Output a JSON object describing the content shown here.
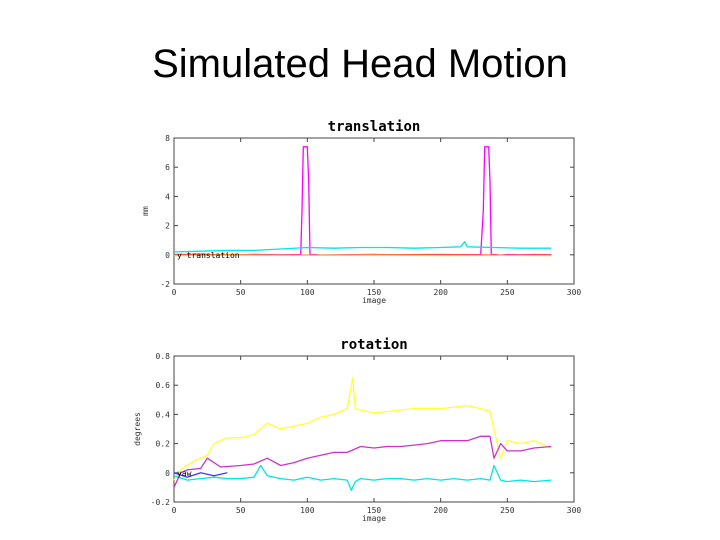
{
  "slide": {
    "title": "Simulated Head Motion"
  },
  "chart_data": [
    {
      "type": "line",
      "title": "translation",
      "xlabel": "image",
      "ylabel": "mm",
      "xlim": [
        0,
        300
      ],
      "ylim": [
        -2,
        8
      ],
      "xticks": [
        0,
        50,
        100,
        150,
        200,
        250,
        300
      ],
      "yticks": [
        -2,
        0,
        2,
        4,
        6,
        8
      ],
      "grid": false,
      "legend": {
        "position": "left-inside",
        "visible_entry": "y translation"
      },
      "series": [
        {
          "name": "",
          "color": "#ff00ff",
          "x": [
            0,
            20,
            40,
            60,
            80,
            95,
            96,
            97,
            99,
            100,
            101,
            102,
            103,
            105,
            110,
            130,
            150,
            170,
            190,
            210,
            230,
            232,
            233,
            234,
            236,
            237,
            238,
            239,
            240,
            245,
            250,
            260,
            270,
            283
          ],
          "y": [
            0.0,
            0.05,
            -0.02,
            0.03,
            0.0,
            0.02,
            3.0,
            7.4,
            7.4,
            7.4,
            5.0,
            0.02,
            0.0,
            0.02,
            -0.02,
            0.0,
            0.03,
            -0.02,
            0.02,
            0.0,
            0.02,
            3.0,
            7.4,
            7.4,
            7.4,
            5.0,
            0.02,
            0.0,
            0.02,
            -0.02,
            0.02,
            0.0,
            0.02,
            0.0
          ]
        },
        {
          "name": "",
          "color": "#00e5e5",
          "x": [
            0,
            20,
            40,
            60,
            80,
            100,
            120,
            140,
            160,
            180,
            200,
            215,
            218,
            220,
            240,
            260,
            283
          ],
          "y": [
            0.2,
            0.25,
            0.3,
            0.3,
            0.4,
            0.5,
            0.45,
            0.5,
            0.5,
            0.45,
            0.5,
            0.55,
            0.9,
            0.55,
            0.5,
            0.45,
            0.45
          ]
        },
        {
          "name": "",
          "color": "#ff3b3b",
          "x": [
            0,
            50,
            100,
            150,
            200,
            250,
            283
          ],
          "y": [
            0.02,
            0.0,
            -0.02,
            0.0,
            0.02,
            -0.02,
            0.0
          ]
        },
        {
          "name": "",
          "color": "#e6e600",
          "x": [
            0,
            50,
            100,
            150,
            200,
            250,
            283
          ],
          "y": [
            -0.05,
            -0.03,
            -0.04,
            -0.03,
            -0.05,
            -0.04,
            -0.05
          ]
        }
      ]
    },
    {
      "type": "line",
      "title": "rotation",
      "xlabel": "image",
      "ylabel": "degrees",
      "xlim": [
        0,
        300
      ],
      "ylim": [
        -0.2,
        0.8
      ],
      "xticks": [
        0,
        50,
        100,
        150,
        200,
        250,
        300
      ],
      "yticks": [
        -0.2,
        0,
        0.2,
        0.4,
        0.6,
        0.8
      ],
      "grid": false,
      "legend": {
        "position": "left-inside",
        "visible_entry": "yaw"
      },
      "series": [
        {
          "name": "",
          "color": "#ffff33",
          "x": [
            0,
            5,
            15,
            25,
            30,
            40,
            50,
            60,
            70,
            80,
            90,
            100,
            110,
            120,
            130,
            134,
            136,
            140,
            150,
            160,
            170,
            180,
            190,
            200,
            210,
            220,
            230,
            237,
            240,
            245,
            250,
            260,
            270,
            283
          ],
          "y": [
            -0.05,
            0.02,
            0.08,
            0.12,
            0.2,
            0.24,
            0.24,
            0.26,
            0.34,
            0.3,
            0.32,
            0.34,
            0.38,
            0.4,
            0.44,
            0.65,
            0.44,
            0.43,
            0.41,
            0.42,
            0.43,
            0.44,
            0.44,
            0.44,
            0.45,
            0.46,
            0.44,
            0.42,
            0.3,
            0.1,
            0.22,
            0.2,
            0.22,
            0.17
          ]
        },
        {
          "name": "",
          "color": "#cc33cc",
          "x": [
            0,
            5,
            10,
            20,
            25,
            35,
            50,
            60,
            70,
            80,
            90,
            100,
            110,
            120,
            130,
            140,
            150,
            160,
            170,
            180,
            190,
            200,
            210,
            220,
            230,
            237,
            240,
            245,
            250,
            260,
            270,
            283
          ],
          "y": [
            -0.1,
            0.0,
            0.02,
            0.03,
            0.1,
            0.04,
            0.05,
            0.06,
            0.1,
            0.05,
            0.07,
            0.1,
            0.12,
            0.14,
            0.14,
            0.18,
            0.17,
            0.18,
            0.18,
            0.19,
            0.2,
            0.22,
            0.22,
            0.22,
            0.25,
            0.25,
            0.1,
            0.2,
            0.15,
            0.15,
            0.17,
            0.18
          ]
        },
        {
          "name": "",
          "color": "#00e5e5",
          "x": [
            0,
            10,
            20,
            30,
            40,
            50,
            60,
            65,
            70,
            80,
            90,
            100,
            110,
            120,
            130,
            133,
            136,
            140,
            150,
            160,
            170,
            180,
            190,
            200,
            210,
            220,
            230,
            237,
            240,
            245,
            250,
            260,
            270,
            283
          ],
          "y": [
            -0.02,
            -0.05,
            -0.04,
            -0.03,
            -0.04,
            -0.04,
            -0.03,
            0.05,
            -0.02,
            -0.04,
            -0.05,
            -0.03,
            -0.05,
            -0.04,
            -0.05,
            -0.12,
            -0.06,
            -0.04,
            -0.05,
            -0.04,
            -0.04,
            -0.05,
            -0.04,
            -0.05,
            -0.04,
            -0.05,
            -0.04,
            -0.05,
            0.05,
            -0.05,
            -0.06,
            -0.05,
            -0.06,
            -0.05
          ]
        },
        {
          "name": "",
          "color": "#3a3aff",
          "x": [
            0,
            10,
            20,
            30,
            40
          ],
          "y": [
            0.0,
            -0.03,
            0.0,
            -0.02,
            0.0
          ]
        }
      ]
    }
  ]
}
